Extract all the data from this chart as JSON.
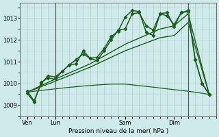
{
  "background_color": "#ceeaea",
  "grid_color": "#b0c8c8",
  "line_color": "#1a5c1a",
  "title": "Pression niveau de la mer( hPa )",
  "xlabel_ticks": [
    "Ven",
    "Lun",
    "Sam",
    "Dim"
  ],
  "xlabel_tick_positions": [
    1,
    5,
    15,
    22
  ],
  "ylim": [
    1008.7,
    1013.7
  ],
  "yticks": [
    1009,
    1010,
    1011,
    1012,
    1013
  ],
  "series": [
    {
      "x": [
        1,
        2,
        3,
        4,
        5,
        6,
        7,
        8,
        9,
        10,
        11,
        12,
        13,
        14,
        15,
        16,
        17,
        18,
        19,
        20,
        21,
        22,
        23,
        24,
        25,
        26,
        27
      ],
      "y": [
        1009.65,
        1009.2,
        1010.0,
        1010.35,
        1010.3,
        1010.55,
        1010.85,
        1010.9,
        1011.5,
        1011.15,
        1011.05,
        1011.5,
        1012.0,
        1012.45,
        1012.5,
        1013.2,
        1013.25,
        1012.65,
        1012.45,
        1013.2,
        1013.1,
        1012.7,
        1013.25,
        1013.3,
        1011.1,
        1010.0,
        1009.5
      ],
      "marker": "D",
      "markersize": 2.5,
      "linewidth": 1.1
    },
    {
      "x": [
        1,
        2,
        3,
        4,
        5,
        6,
        7,
        8,
        9,
        10,
        11,
        12,
        13,
        14,
        15,
        16,
        17,
        18,
        19,
        20,
        21,
        22,
        23,
        24,
        25,
        26,
        27
      ],
      "y": [
        1009.55,
        1009.15,
        1010.05,
        1010.25,
        1010.2,
        1010.55,
        1010.85,
        1011.1,
        1011.35,
        1011.15,
        1011.2,
        1011.6,
        1012.15,
        1012.4,
        1013.05,
        1013.35,
        1013.3,
        1012.35,
        1012.2,
        1013.2,
        1013.25,
        1012.6,
        1013.25,
        1013.35,
        1011.1,
        1010.0,
        1009.5
      ],
      "marker": "D",
      "markersize": 2.5,
      "linewidth": 1.1
    },
    {
      "x": [
        1,
        5,
        10,
        15,
        20,
        22,
        24,
        27
      ],
      "y": [
        1009.6,
        1010.2,
        1010.9,
        1011.8,
        1012.5,
        1012.65,
        1013.2,
        1009.5
      ],
      "marker": null,
      "markersize": 0,
      "linewidth": 1.0
    },
    {
      "x": [
        1,
        5,
        10,
        15,
        20,
        22,
        24,
        27
      ],
      "y": [
        1009.6,
        1010.1,
        1010.75,
        1011.5,
        1012.1,
        1012.2,
        1012.8,
        1009.5
      ],
      "marker": null,
      "markersize": 0,
      "linewidth": 1.0
    },
    {
      "x": [
        1,
        3,
        5,
        7,
        9,
        11,
        13,
        15,
        17,
        19,
        21,
        23,
        25,
        27
      ],
      "y": [
        1009.6,
        1009.68,
        1009.75,
        1009.82,
        1009.88,
        1009.93,
        1009.97,
        1009.97,
        1009.9,
        1009.83,
        1009.75,
        1009.68,
        1009.6,
        1009.5
      ],
      "marker": null,
      "markersize": 0,
      "linewidth": 0.9
    }
  ],
  "vlines_x": [
    5,
    24
  ],
  "vline_color": "#555555",
  "fig_width": 3.2,
  "fig_height": 2.0,
  "dpi": 100
}
